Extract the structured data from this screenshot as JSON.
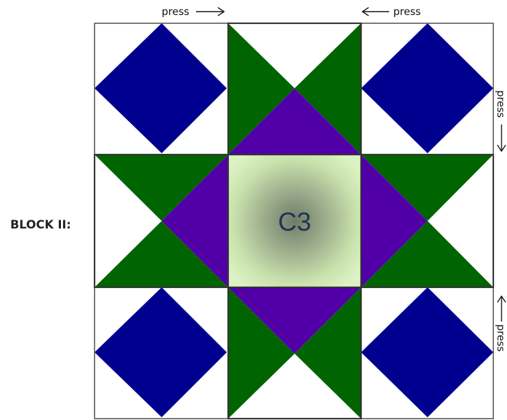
{
  "block": {
    "label": "BLOCK II:",
    "center_label": "C3"
  },
  "press": {
    "top_left": "press",
    "top_right": "press",
    "right_top": "press",
    "right_bottom": "press"
  },
  "colors": {
    "navy": "#00008f",
    "green": "#006400",
    "purple": "#5100a8",
    "center_light": "#d9efbf",
    "center_dark": "#6f7b67",
    "outline": "#555555",
    "background": "#ffffff"
  }
}
